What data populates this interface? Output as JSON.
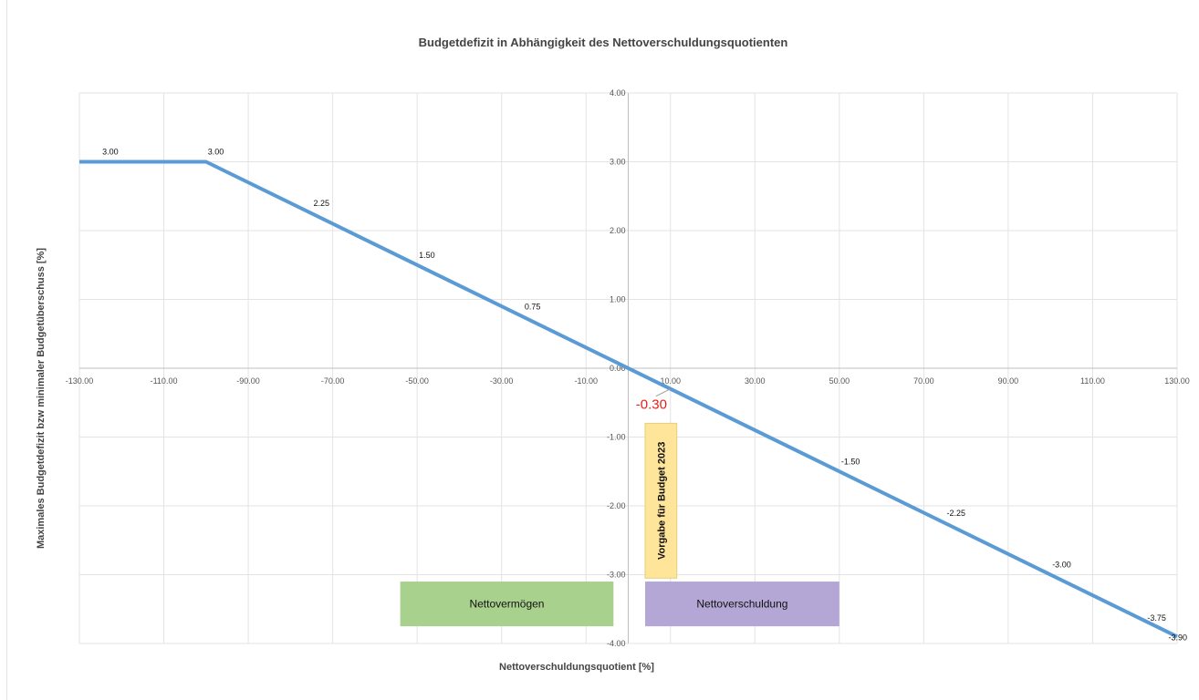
{
  "chart_data": {
    "type": "line",
    "title": "Budgetdefizit in Abhängigkeit des Nettoverschuldungsquotienten",
    "xlabel": "Nettoverschuldungsquotient [%]",
    "ylabel": "Maximales Budgetdefizit bzw minimaler Budgetüberschuss [%]",
    "xlim": [
      -130,
      130
    ],
    "ylim": [
      -4,
      4
    ],
    "x_ticks": [
      "-130.00",
      "-110.00",
      "-90.00",
      "-70.00",
      "-50.00",
      "-30.00",
      "-10.00",
      "10.00",
      "30.00",
      "50.00",
      "70.00",
      "90.00",
      "110.00",
      "130.00"
    ],
    "y_ticks": [
      "4.00",
      "3.00",
      "2.00",
      "1.00",
      "0.00",
      "-1.00",
      "-2.00",
      "-3.00",
      "-4.00"
    ],
    "grid": true,
    "line_color": "#5b9bd5",
    "series": [
      {
        "x": [
          -130,
          -100,
          130
        ],
        "y": [
          3.0,
          3.0,
          -3.9
        ]
      }
    ],
    "data_labels": [
      {
        "x": -125,
        "y": 3.0,
        "text": "3.00"
      },
      {
        "x": -100,
        "y": 3.0,
        "text": "3.00"
      },
      {
        "x": -75,
        "y": 2.25,
        "text": "2.25"
      },
      {
        "x": -50,
        "y": 1.5,
        "text": "1.50"
      },
      {
        "x": -25,
        "y": 0.75,
        "text": "0.75"
      },
      {
        "x": 50,
        "y": -1.5,
        "text": "-1.50"
      },
      {
        "x": 75,
        "y": -2.25,
        "text": "-2.25"
      },
      {
        "x": 100,
        "y": -3.0,
        "text": "-3.00"
      },
      {
        "x": 125,
        "y": -3.75,
        "text": "-3.75"
      },
      {
        "x": 130,
        "y": -3.9,
        "text": "-3.90"
      }
    ],
    "highlight": {
      "x": 10,
      "y": -0.3,
      "text": "-0.30",
      "color": "#e8201a"
    },
    "annotations": [
      {
        "text": "Nettovermögen",
        "color": "#a9d18e",
        "x_range": [
          -54,
          -3.5
        ],
        "y_range": [
          -3.1,
          -3.75
        ]
      },
      {
        "text": "Nettoverschuldung",
        "color": "#b4a7d6",
        "x_range": [
          4,
          50
        ],
        "y_range": [
          -3.1,
          -3.75
        ]
      }
    ],
    "vertical_note": {
      "text": "Vorgabe für Budget 2023",
      "color": "#ffe599",
      "x_range": [
        4,
        11.5
      ],
      "y_range": [
        -0.8,
        -3.05
      ]
    }
  }
}
